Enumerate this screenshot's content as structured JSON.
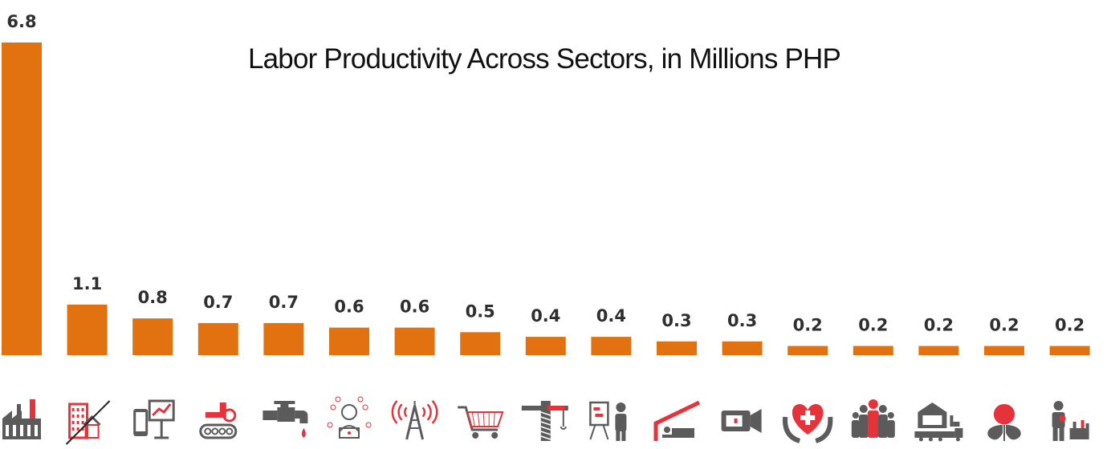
{
  "chart_data": {
    "type": "bar",
    "title": "Labor Productivity Across Sectors, in Millions PHP",
    "xlabel": "",
    "ylabel": "",
    "categories": [
      "",
      "",
      "",
      "",
      "",
      "",
      "",
      "",
      "",
      "",
      "",
      "",
      "",
      "",
      "",
      "",
      ""
    ],
    "category_icons": [
      "factory-icon",
      "buildings-house-icon",
      "finance-dashboard-icon",
      "conveyor-machinery-icon",
      "water-faucet-icon",
      "person-laptop-icon",
      "communication-tower-icon",
      "shopping-cart-icon",
      "construction-crane-icon",
      "presenter-board-icon",
      "accommodation-bed-icon",
      "video-camera-icon",
      "health-heart-hands-icon",
      "people-group-icon",
      "warehouse-truck-icon",
      "agriculture-fishing-icon",
      "repair-worker-icon"
    ],
    "values": [
      6.8,
      1.1,
      0.8,
      0.7,
      0.7,
      0.6,
      0.6,
      0.5,
      0.4,
      0.4,
      0.3,
      0.3,
      0.2,
      0.2,
      0.2,
      0.2,
      0.2
    ],
    "value_labels": [
      "6.8",
      "1.1",
      "0.8",
      "0.7",
      "0.7",
      "0.6",
      "0.6",
      "0.5",
      "0.4",
      "0.4",
      "0.3",
      "0.3",
      "0.2",
      "0.2",
      "0.2",
      "0.2",
      "0.2"
    ],
    "ylim": [
      0,
      6.8
    ],
    "grid": false,
    "legend": "none",
    "colors": {
      "bar": "#e2720f",
      "icon_gray": "#5b5b5b",
      "icon_red": "#e6323a",
      "text": "#2f2f2f",
      "title": "#111111"
    }
  }
}
